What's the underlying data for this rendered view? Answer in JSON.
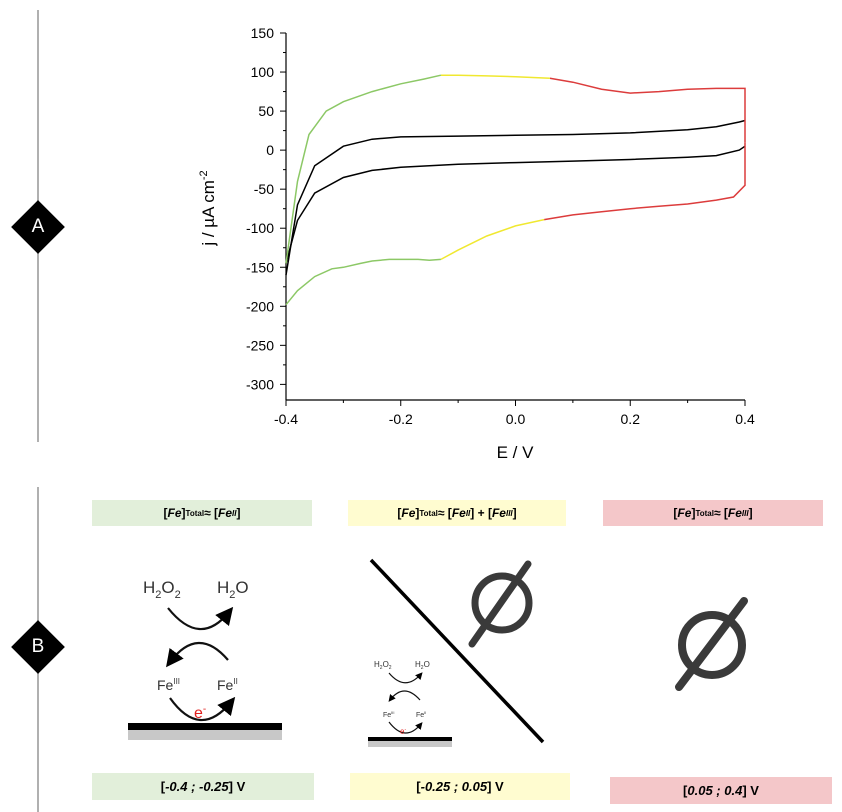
{
  "sections": [
    {
      "label": "A"
    },
    {
      "label": "B"
    }
  ],
  "chart_data": {
    "type": "line",
    "xlabel": "E / V",
    "ylabel": "j / µA cm",
    "ylabel_exponent": "-2",
    "xlim": [
      -0.4,
      0.4
    ],
    "ylim": [
      -320,
      150
    ],
    "x_ticks": [
      -0.4,
      -0.2,
      0.0,
      0.2,
      0.4
    ],
    "x_tick_labels": [
      "-0.4",
      "-0.2",
      "0.0",
      "0.2",
      "0.4"
    ],
    "y_ticks": [
      150,
      100,
      50,
      0,
      -50,
      -100,
      -150,
      -200,
      -250,
      -300
    ],
    "grid": false,
    "series": [
      {
        "color": "#000000",
        "forward": {
          "x": [
            -0.4,
            -0.38,
            -0.35,
            -0.3,
            -0.25,
            -0.2,
            -0.1,
            0.0,
            0.1,
            0.2,
            0.3,
            0.35,
            0.39,
            0.4
          ],
          "y": [
            -145,
            -90,
            -55,
            -35,
            -26,
            -22,
            -18,
            -16,
            -14,
            -12,
            -9,
            -7,
            0,
            5
          ]
        },
        "reverse": {
          "x": [
            0.4,
            0.39,
            0.35,
            0.3,
            0.2,
            0.1,
            0.0,
            -0.1,
            -0.2,
            -0.25,
            -0.3,
            -0.35,
            -0.38,
            -0.4
          ],
          "y": [
            38,
            36,
            30,
            26,
            22,
            20,
            19,
            18,
            17,
            14,
            5,
            -20,
            -70,
            -160
          ]
        }
      },
      {
        "color_segments": [
          {
            "color": "#8cc866",
            "x": [
              -0.4,
              -0.38,
              -0.35,
              -0.32,
              -0.3,
              -0.27,
              -0.25,
              -0.22,
              -0.2,
              -0.17,
              -0.15,
              -0.13
            ],
            "y": [
              -198,
              -180,
              -162,
              -152,
              -150,
              -145,
              -142,
              -140,
              -140,
              -140,
              -141,
              -140
            ]
          },
          {
            "color": "#f0e830",
            "x": [
              -0.13,
              -0.1,
              -0.05,
              0.0,
              0.05
            ],
            "y": [
              -140,
              -128,
              -110,
              -97,
              -89
            ]
          },
          {
            "color": "#dc3c3c",
            "x": [
              0.05,
              0.1,
              0.15,
              0.2,
              0.25,
              0.3,
              0.35,
              0.38,
              0.4,
              0.4
            ],
            "y": [
              -89,
              -83,
              -79,
              -75,
              -72,
              -69,
              -64,
              -60,
              -45,
              10
            ]
          },
          {
            "color": "#dc3c3c",
            "x": [
              0.4,
              0.4,
              0.35,
              0.3,
              0.25,
              0.2,
              0.15,
              0.1,
              0.06
            ],
            "y": [
              10,
              79,
              79,
              78,
              75,
              73,
              78,
              87,
              92
            ]
          },
          {
            "color": "#f0e830",
            "x": [
              0.06,
              0.0,
              -0.05,
              -0.1,
              -0.13
            ],
            "y": [
              92,
              94,
              95,
              96,
              96
            ]
          },
          {
            "color": "#8cc866",
            "x": [
              -0.13,
              -0.16,
              -0.2,
              -0.25,
              -0.3,
              -0.33,
              -0.36,
              -0.38,
              -0.4
            ],
            "y": [
              96,
              91,
              85,
              75,
              62,
              50,
              20,
              -40,
              -145
            ]
          }
        ]
      }
    ]
  },
  "panelB": {
    "columns": [
      {
        "condition": {
          "pre": "[",
          "fe": "Fe",
          "post1": "]",
          "sub": "Total",
          "approx": " ≈ [",
          "fe2": "Fe",
          "sup2": "II",
          "post2": "]"
        },
        "range": {
          "open": "[",
          "value": "-0.4 ; -0.25",
          "close": "] V"
        }
      },
      {
        "condition": {
          "pre": "[",
          "fe": "Fe",
          "post1": "]",
          "sub": "Total",
          "approx": " ≈ [",
          "fe2": "Fe",
          "sup2": "II",
          "post2": "] + [",
          "fe3": "Fe",
          "sup3": "III",
          "post3": "]"
        },
        "range": {
          "open": "[",
          "value": "-0.25 ; 0.05",
          "close": "] V"
        }
      },
      {
        "condition": {
          "pre": "[",
          "fe": "Fe",
          "post1": "]",
          "sub": "Total",
          "approx": " ≈ [",
          "fe2": "Fe",
          "sup2": "III",
          "post2": "]"
        },
        "range": {
          "open": "[",
          "value": "0.05 ; 0.4",
          "close": "] V"
        }
      }
    ],
    "mechanism": {
      "reactant": "H",
      "reactant_sub1": "2",
      "reactant_o": "O",
      "reactant_sub2": "2",
      "product": "H",
      "product_sub": "2",
      "product_o": "O",
      "fe_left": "Fe",
      "fe_left_sup": "III",
      "fe_right": "Fe",
      "fe_right_sup": "II",
      "electron": "e",
      "electron_sup": "-"
    },
    "mechanism_small": {
      "reactant": "H",
      "reactant_sub1": "2",
      "reactant_o": "O",
      "reactant_sub2": "2",
      "product": "H",
      "product_sub": "2",
      "product_o": "O",
      "fe_left": "Fe",
      "fe_left_sup": "III",
      "fe_right": "Fe",
      "fe_right_sup": "II",
      "electron": "e",
      "electron_sup": "-"
    },
    "colors": {
      "green": "#e2efda",
      "yellow": "#fffcd0",
      "red": "#f4c7c9",
      "electron": "#e0201e"
    }
  }
}
